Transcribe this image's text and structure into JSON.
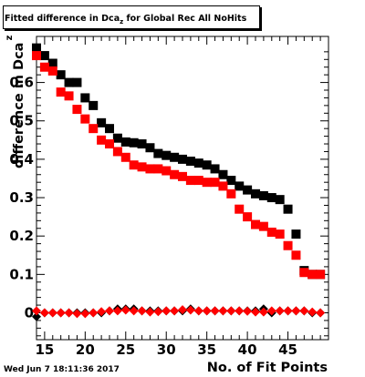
{
  "page": {
    "title_main": "Fitted difference in Dca",
    "title_sub": "z",
    "title_rest": "  for Global Rec All NoHits",
    "timestamp": "Wed Jun  7 18:11:36 2017"
  },
  "chart_data": {
    "type": "scatter",
    "title": "Fitted difference in Dca_z  for Global Rec All NoHits",
    "xlabel": "No. of Fit Points",
    "ylabel": "difference in Dca",
    "ylabel_sub": "z",
    "xlim": [
      14,
      50
    ],
    "ylim": [
      -0.07,
      0.72
    ],
    "xticks": [
      15,
      20,
      25,
      30,
      35,
      40,
      45
    ],
    "yticks": [
      0,
      0.1,
      0.2,
      0.3,
      0.4,
      0.5,
      0.6
    ],
    "ytick_labels": [
      "0",
      "0.1",
      "0.2",
      "0.3",
      "0.4",
      "0.5",
      "0.6"
    ],
    "grid": false,
    "series": [
      {
        "color": "#000000",
        "marker": "square",
        "x": [
          14,
          15,
          16,
          17,
          18,
          19,
          20,
          21,
          22,
          23,
          24,
          25,
          26,
          27,
          28,
          29,
          30,
          31,
          32,
          33,
          34,
          35,
          36,
          37,
          38,
          39,
          40,
          41,
          42,
          43,
          44,
          45,
          46,
          47,
          48,
          49
        ],
        "y": [
          0.69,
          0.67,
          0.65,
          0.62,
          0.6,
          0.6,
          0.56,
          0.54,
          0.495,
          0.48,
          0.455,
          0.445,
          0.443,
          0.44,
          0.43,
          0.415,
          0.41,
          0.405,
          0.4,
          0.395,
          0.39,
          0.385,
          0.375,
          0.36,
          0.345,
          0.33,
          0.32,
          0.31,
          0.305,
          0.3,
          0.295,
          0.27,
          0.205,
          0.11,
          0.1,
          0.1
        ]
      },
      {
        "color": "#ff0000",
        "marker": "square",
        "x": [
          14,
          15,
          16,
          17,
          18,
          19,
          20,
          21,
          22,
          23,
          24,
          25,
          26,
          27,
          28,
          29,
          30,
          31,
          32,
          33,
          34,
          35,
          36,
          37,
          38,
          39,
          40,
          41,
          42,
          43,
          44,
          45,
          46,
          47,
          48,
          49
        ],
        "y": [
          0.67,
          0.64,
          0.63,
          0.575,
          0.565,
          0.53,
          0.505,
          0.48,
          0.45,
          0.44,
          0.42,
          0.405,
          0.385,
          0.38,
          0.375,
          0.375,
          0.37,
          0.36,
          0.355,
          0.345,
          0.345,
          0.34,
          0.34,
          0.33,
          0.31,
          0.27,
          0.25,
          0.23,
          0.225,
          0.21,
          0.205,
          0.175,
          0.15,
          0.105,
          0.1,
          0.1
        ]
      },
      {
        "color": "#000000",
        "marker": "diamond",
        "x": [
          14,
          15,
          16,
          17,
          18,
          19,
          20,
          21,
          22,
          23,
          24,
          25,
          26,
          27,
          28,
          29,
          30,
          31,
          32,
          33,
          34,
          35,
          36,
          37,
          38,
          39,
          40,
          41,
          42,
          43,
          44,
          45,
          46,
          47,
          48,
          49
        ],
        "y": [
          -0.01,
          0.0,
          0.0,
          0.0,
          0.0,
          0.0,
          0.0,
          0.0,
          0.0,
          0.005,
          0.01,
          0.01,
          0.01,
          0.005,
          0.005,
          0.005,
          0.005,
          0.005,
          0.005,
          0.01,
          0.005,
          0.005,
          0.005,
          0.005,
          0.005,
          0.005,
          0.005,
          0.005,
          0.01,
          0.0,
          0.005,
          0.005,
          0.005,
          0.005,
          0.0,
          0.0
        ]
      },
      {
        "color": "#ff0000",
        "marker": "diamond",
        "x": [
          14,
          15,
          16,
          17,
          18,
          19,
          20,
          21,
          22,
          23,
          24,
          25,
          26,
          27,
          28,
          29,
          30,
          31,
          32,
          33,
          34,
          35,
          36,
          37,
          38,
          39,
          40,
          41,
          42,
          43,
          44,
          45,
          46,
          47,
          48,
          49
        ],
        "y": [
          0.005,
          0.0,
          0.0,
          0.0,
          0.0,
          -0.002,
          -0.002,
          0.0,
          0.003,
          0.005,
          0.005,
          0.007,
          0.005,
          0.005,
          0.002,
          0.003,
          0.005,
          0.005,
          0.008,
          0.007,
          0.005,
          0.005,
          0.005,
          0.005,
          0.005,
          0.005,
          0.004,
          0.002,
          0.002,
          0.005,
          0.005,
          0.005,
          0.005,
          0.005,
          0.002,
          0.0
        ]
      }
    ]
  }
}
